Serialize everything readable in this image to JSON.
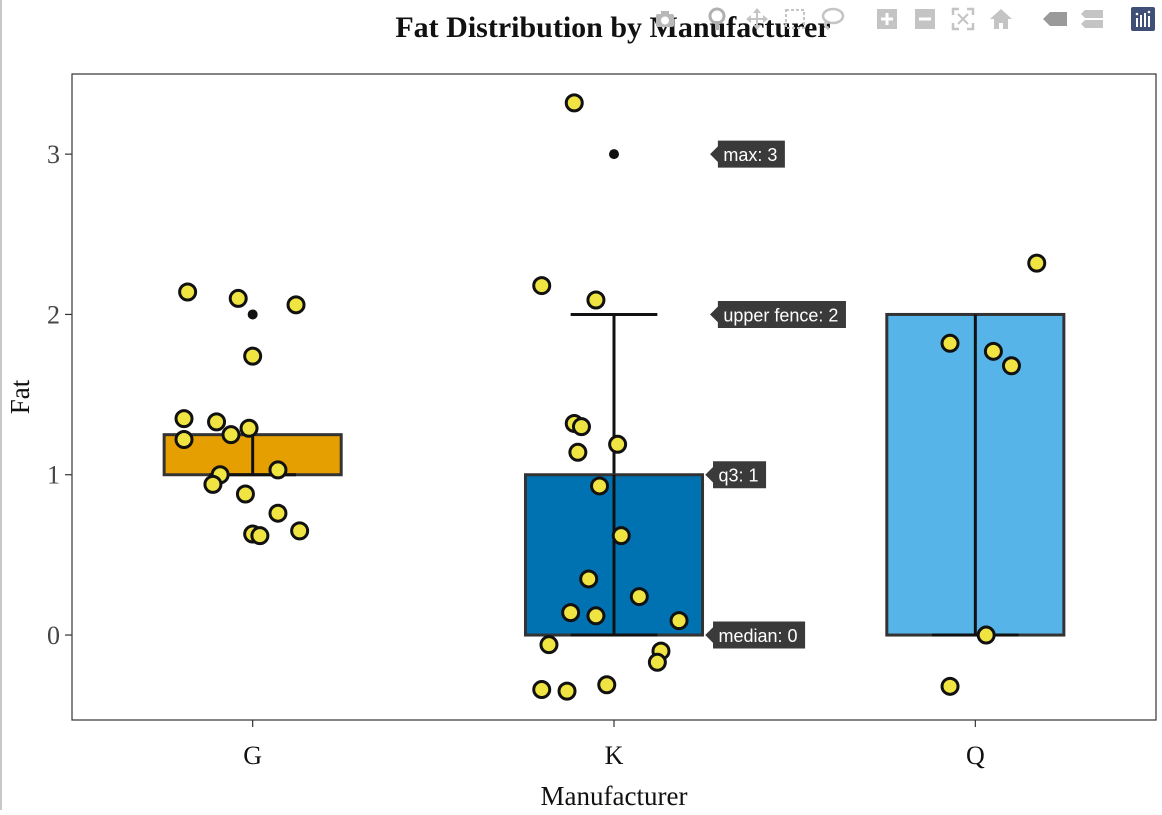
{
  "chart_data": {
    "type": "box",
    "title": "Fat Distribution by Manufacturer",
    "xlabel": "Manufacturer",
    "ylabel": "Fat",
    "categories": [
      "G",
      "K",
      "Q"
    ],
    "ylim": [
      -0.53,
      3.5
    ],
    "yticks": [
      0,
      1,
      2,
      3
    ],
    "grid": false,
    "colors": {
      "G": "#E69F00",
      "K": "#0072B2",
      "Q": "#56B4E9"
    },
    "boxes": [
      {
        "category": "G",
        "q1": 1,
        "median": 1,
        "q3": 1.25,
        "lower_fence": 1,
        "upper_fence": 1,
        "outliers": [
          2
        ]
      },
      {
        "category": "K",
        "q1": 0,
        "median": 0,
        "q3": 1,
        "lower_fence": 0,
        "upper_fence": 2,
        "outliers": [
          3
        ]
      },
      {
        "category": "Q",
        "q1": 0,
        "median": 0,
        "q3": 2,
        "lower_fence": 0,
        "upper_fence": 2,
        "outliers": []
      }
    ],
    "points": {
      "G": [
        {
          "x": -0.18,
          "y": 2.14
        },
        {
          "x": -0.04,
          "y": 2.1
        },
        {
          "x": 0.12,
          "y": 2.06
        },
        {
          "x": 0.0,
          "y": 1.74
        },
        {
          "x": -0.19,
          "y": 1.35
        },
        {
          "x": -0.1,
          "y": 1.33
        },
        {
          "x": -0.06,
          "y": 1.25
        },
        {
          "x": -0.01,
          "y": 1.29
        },
        {
          "x": -0.19,
          "y": 1.22
        },
        {
          "x": 0.07,
          "y": 1.03
        },
        {
          "x": -0.09,
          "y": 1.0
        },
        {
          "x": -0.11,
          "y": 0.94
        },
        {
          "x": -0.02,
          "y": 0.88
        },
        {
          "x": 0.07,
          "y": 0.76
        },
        {
          "x": 0.13,
          "y": 0.65
        },
        {
          "x": 0.0,
          "y": 0.63
        },
        {
          "x": 0.02,
          "y": 0.62
        }
      ],
      "K": [
        {
          "x": -0.11,
          "y": 3.32
        },
        {
          "x": -0.2,
          "y": 2.18
        },
        {
          "x": -0.05,
          "y": 2.09
        },
        {
          "x": -0.11,
          "y": 1.32
        },
        {
          "x": -0.09,
          "y": 1.3
        },
        {
          "x": 0.01,
          "y": 1.19
        },
        {
          "x": -0.1,
          "y": 1.14
        },
        {
          "x": -0.04,
          "y": 0.93
        },
        {
          "x": 0.02,
          "y": 0.62
        },
        {
          "x": -0.07,
          "y": 0.35
        },
        {
          "x": 0.07,
          "y": 0.24
        },
        {
          "x": -0.12,
          "y": 0.14
        },
        {
          "x": -0.05,
          "y": 0.12
        },
        {
          "x": 0.18,
          "y": 0.09
        },
        {
          "x": -0.18,
          "y": -0.06
        },
        {
          "x": 0.13,
          "y": -0.1
        },
        {
          "x": 0.12,
          "y": -0.17
        },
        {
          "x": -0.2,
          "y": -0.34
        },
        {
          "x": -0.13,
          "y": -0.35
        },
        {
          "x": -0.02,
          "y": -0.31
        }
      ],
      "Q": [
        {
          "x": 0.17,
          "y": 2.32
        },
        {
          "x": -0.07,
          "y": 1.82
        },
        {
          "x": 0.05,
          "y": 1.77
        },
        {
          "x": 0.1,
          "y": 1.68
        },
        {
          "x": 0.03,
          "y": 0.0
        },
        {
          "x": -0.07,
          "y": -0.32
        }
      ]
    },
    "hover_labels": [
      {
        "text": "max: 3",
        "category": "K",
        "y": 3
      },
      {
        "text": "upper fence: 2",
        "category": "K",
        "y": 2
      },
      {
        "text": "q3: 1",
        "category": "K",
        "y": 1
      },
      {
        "text": "median: 0",
        "category": "K",
        "y": 0
      }
    ]
  },
  "modebar": {
    "icons": [
      "camera-icon",
      "pan-icon",
      "move-icon",
      "box-select-icon",
      "lasso-icon",
      "zoom-in-icon",
      "zoom-out-icon",
      "autoscale-icon",
      "home-icon",
      "hover-closest-icon",
      "hover-compare-icon",
      "plotly-logo-icon"
    ]
  }
}
